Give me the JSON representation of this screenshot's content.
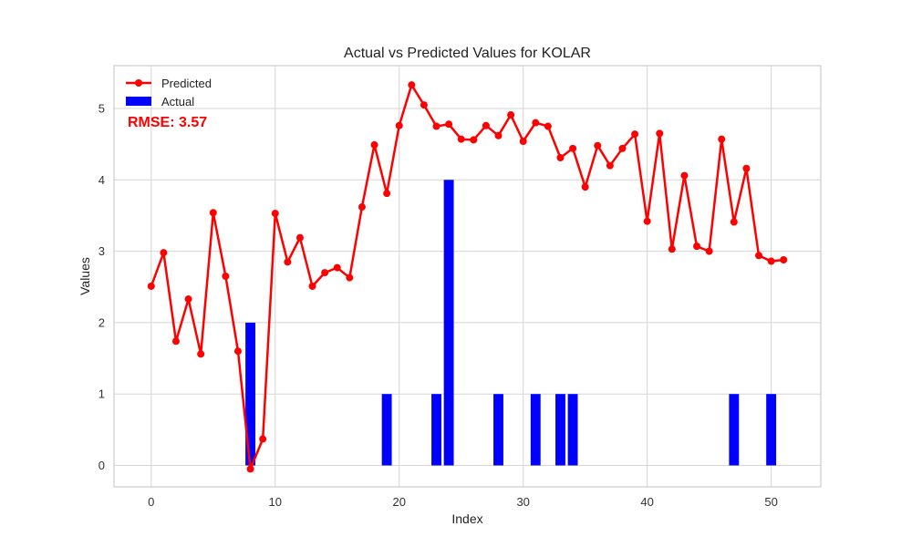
{
  "chart_data": {
    "type": "bar+line",
    "title": "Actual vs Predicted Values for KOLAR",
    "xlabel": "Index",
    "ylabel": "Values",
    "xlim": [
      -3,
      54
    ],
    "ylim": [
      -0.3,
      5.6
    ],
    "xticks": [
      0,
      10,
      20,
      30,
      40,
      50
    ],
    "yticks": [
      0,
      1,
      2,
      3,
      4,
      5
    ],
    "grid": true,
    "legend": {
      "placement": "top-left",
      "entries": [
        "Predicted",
        "Actual"
      ]
    },
    "annotation": "RMSE: 3.57",
    "x": [
      0,
      1,
      2,
      3,
      4,
      5,
      6,
      7,
      8,
      9,
      10,
      11,
      12,
      13,
      14,
      15,
      16,
      17,
      18,
      19,
      20,
      21,
      22,
      23,
      24,
      25,
      26,
      27,
      28,
      29,
      30,
      31,
      32,
      33,
      34,
      35,
      36,
      37,
      38,
      39,
      40,
      41,
      42,
      43,
      44,
      45,
      46,
      47,
      48,
      49,
      50,
      51
    ],
    "series": [
      {
        "name": "Predicted",
        "type": "line",
        "color": "#ff0000",
        "values": [
          2.51,
          2.98,
          1.74,
          2.33,
          1.56,
          3.54,
          2.65,
          1.6,
          -0.05,
          0.37,
          3.53,
          2.85,
          3.19,
          2.51,
          2.7,
          2.77,
          2.63,
          3.62,
          4.49,
          3.81,
          4.76,
          5.33,
          5.05,
          4.75,
          4.78,
          4.57,
          4.56,
          4.76,
          4.62,
          4.91,
          4.54,
          4.8,
          4.75,
          4.31,
          4.44,
          3.9,
          4.48,
          4.2,
          4.44,
          4.64,
          3.42,
          4.65,
          3.03,
          4.06,
          3.07,
          3.0,
          4.57,
          3.41,
          4.16,
          2.94,
          2.86,
          2.88
        ]
      },
      {
        "name": "Actual",
        "type": "bar",
        "color": "#0000ff",
        "values": [
          0,
          0,
          0,
          0,
          0,
          0,
          0,
          0,
          2,
          0,
          0,
          0,
          0,
          0,
          0,
          0,
          0,
          0,
          0,
          1,
          0,
          0,
          0,
          1,
          4,
          0,
          0,
          0,
          1,
          0,
          0,
          1,
          0,
          1,
          1,
          0,
          0,
          0,
          0,
          0,
          0,
          0,
          0,
          0,
          0,
          0,
          0,
          1,
          0,
          0,
          1,
          0
        ]
      }
    ]
  }
}
